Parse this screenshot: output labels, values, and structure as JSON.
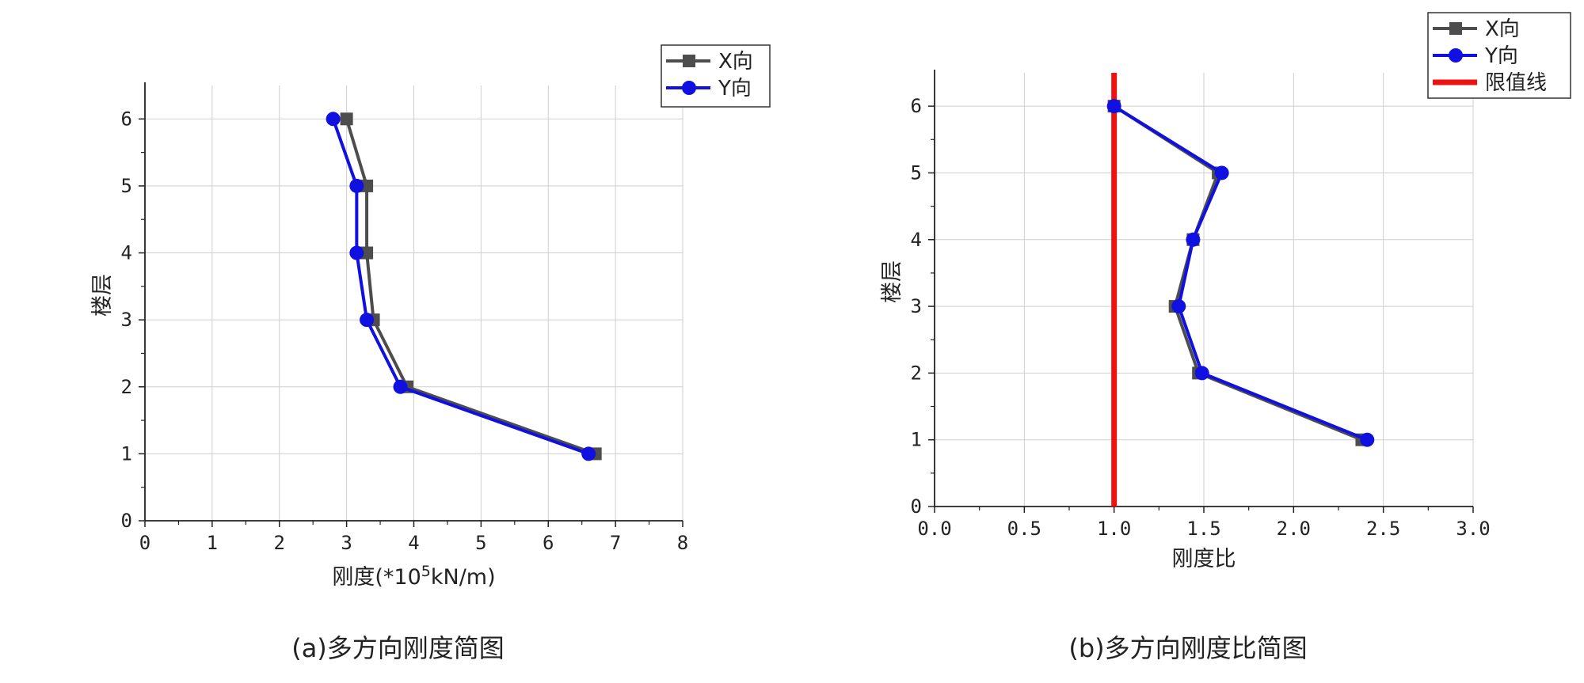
{
  "chart_data": [
    {
      "type": "line",
      "orientation": "horizontal-values-vertical-floors",
      "xlabel": "刚度(*10⁵kN/m)",
      "ylabel": "楼层",
      "caption": "(a)多方向刚度简图",
      "xlim": [
        0,
        8
      ],
      "ylim": [
        0,
        6.5
      ],
      "xticks": [
        "0",
        "1",
        "2",
        "3",
        "4",
        "5",
        "6",
        "7",
        "8"
      ],
      "yticks": [
        "0",
        "1",
        "2",
        "3",
        "4",
        "5",
        "6"
      ],
      "grid": true,
      "legend_position": "top-right",
      "floors": [
        1,
        2,
        3,
        4,
        5,
        6
      ],
      "series": [
        {
          "name": "X向",
          "color": "#4d4d4d",
          "marker": "square",
          "values": [
            6.7,
            3.9,
            3.4,
            3.3,
            3.3,
            3.0
          ]
        },
        {
          "name": "Y向",
          "color": "#1010e0",
          "marker": "circle",
          "values": [
            6.6,
            3.8,
            3.3,
            3.15,
            3.15,
            2.8
          ]
        }
      ]
    },
    {
      "type": "line",
      "orientation": "horizontal-values-vertical-floors",
      "xlabel": "刚度比",
      "ylabel": "楼层",
      "caption": "(b)多方向刚度比简图",
      "xlim": [
        0.0,
        3.0
      ],
      "ylim": [
        0,
        6.5
      ],
      "xticks": [
        "0.0",
        "0.5",
        "1.0",
        "1.5",
        "2.0",
        "2.5",
        "3.0"
      ],
      "yticks": [
        "0",
        "1",
        "2",
        "3",
        "4",
        "5",
        "6"
      ],
      "grid": true,
      "legend_position": "top-right",
      "floors": [
        1,
        2,
        3,
        4,
        5,
        6
      ],
      "series": [
        {
          "name": "X向",
          "color": "#4d4d4d",
          "marker": "square",
          "values": [
            2.38,
            1.47,
            1.34,
            1.44,
            1.58,
            1.0
          ]
        },
        {
          "name": "Y向",
          "color": "#1010e0",
          "marker": "circle",
          "values": [
            2.41,
            1.49,
            1.36,
            1.44,
            1.6,
            1.0
          ]
        }
      ],
      "reference_line": {
        "name": "限值线",
        "color": "#ee1111",
        "value": 1.0
      }
    }
  ]
}
